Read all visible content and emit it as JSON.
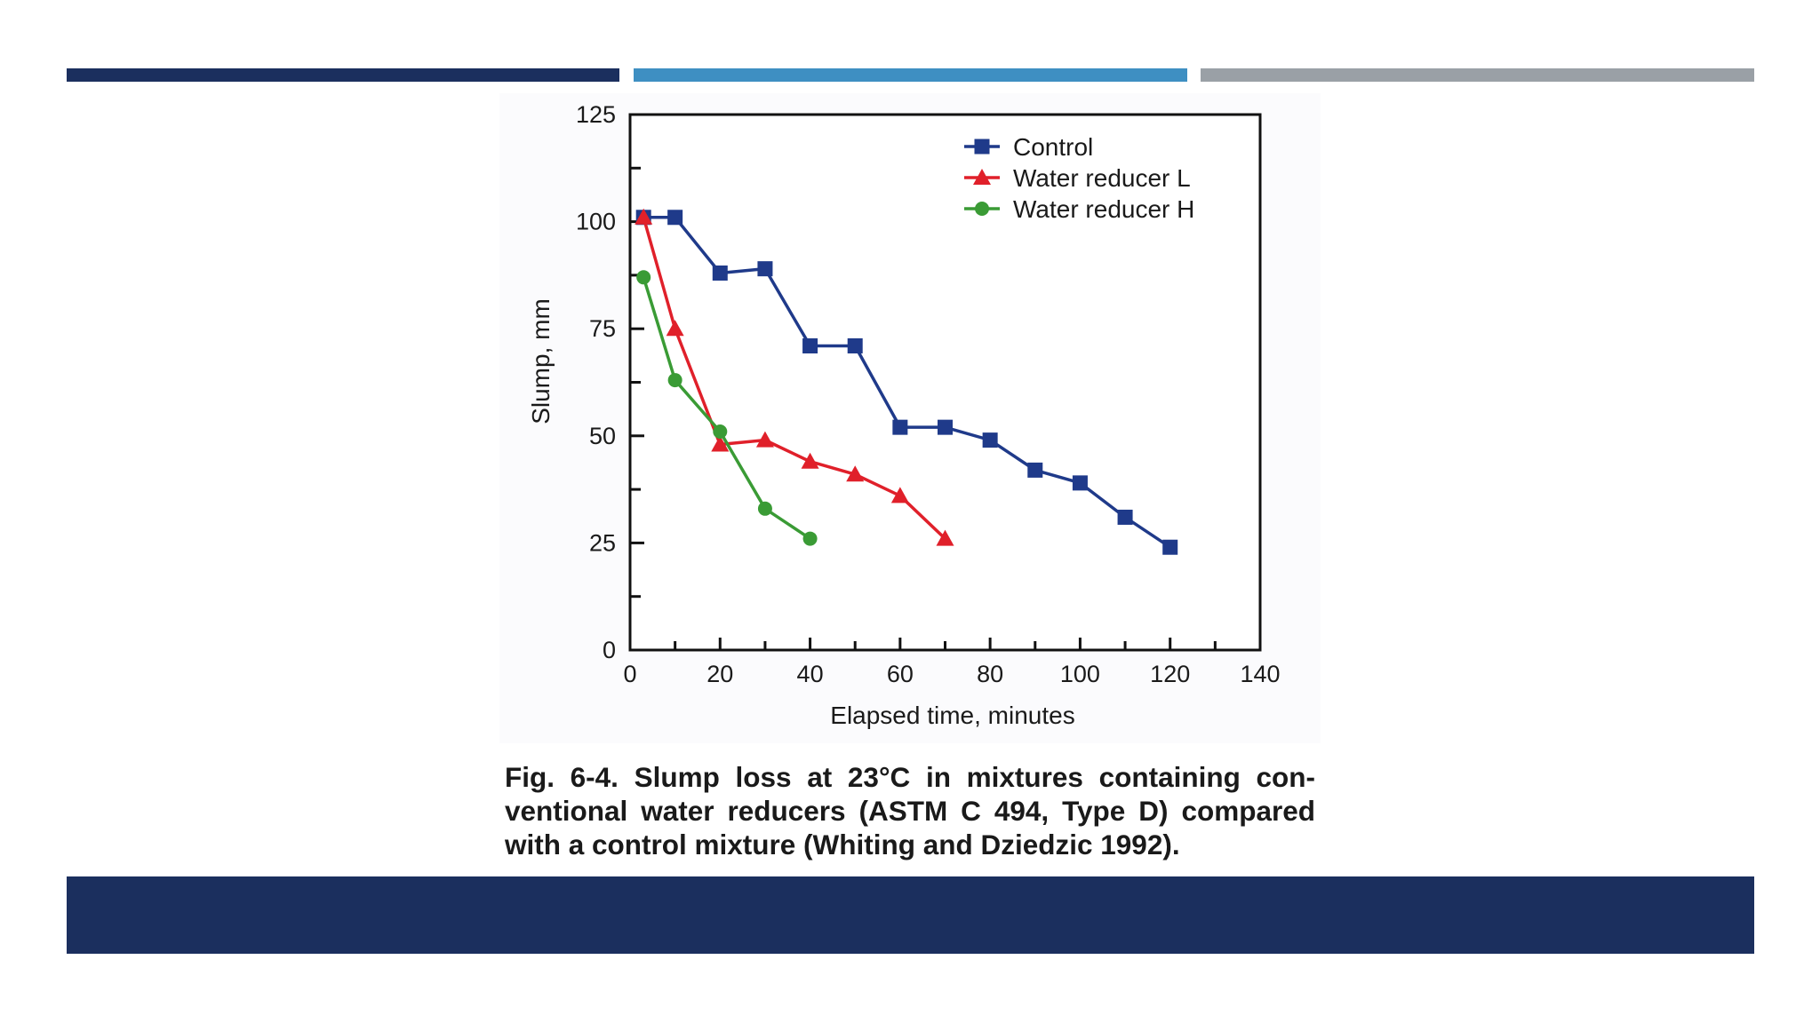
{
  "colors": {
    "bar_dark": "#1b2f5e",
    "bar_blue": "#3e8fc2",
    "bar_gray": "#9aa0a6",
    "footer": "#1b2f5e"
  },
  "caption": "Fig. 6-4. Slump loss at 23°C in mixtures containing con- ventional water reducers (ASTM C 494, Type D) compared with a control mixture (Whiting and Dziedzic 1992).",
  "chart_data": {
    "type": "line",
    "xlabel": "Elapsed time, minutes",
    "ylabel": "Slump, mm",
    "xlim": [
      0,
      140
    ],
    "ylim": [
      0,
      125
    ],
    "xticks": [
      0,
      20,
      40,
      60,
      80,
      100,
      120,
      140
    ],
    "yticks": [
      0,
      25,
      50,
      75,
      100,
      125
    ],
    "grid": false,
    "legend_position": "top-right",
    "series": [
      {
        "name": "Control",
        "color": "#1f3a8a",
        "marker": "square",
        "x": [
          3,
          10,
          20,
          30,
          40,
          50,
          60,
          70,
          80,
          90,
          100,
          110,
          120
        ],
        "y": [
          101,
          101,
          88,
          89,
          71,
          71,
          52,
          52,
          49,
          42,
          39,
          31,
          24
        ]
      },
      {
        "name": "Water reducer L",
        "color": "#e0202a",
        "marker": "triangle",
        "x": [
          3,
          10,
          20,
          30,
          40,
          50,
          60,
          70
        ],
        "y": [
          101,
          75,
          48,
          49,
          44,
          41,
          36,
          26
        ]
      },
      {
        "name": "Water reducer H",
        "color": "#3a9b35",
        "marker": "circle",
        "x": [
          3,
          10,
          20,
          30,
          40
        ],
        "y": [
          87,
          63,
          51,
          33,
          26
        ]
      }
    ]
  }
}
